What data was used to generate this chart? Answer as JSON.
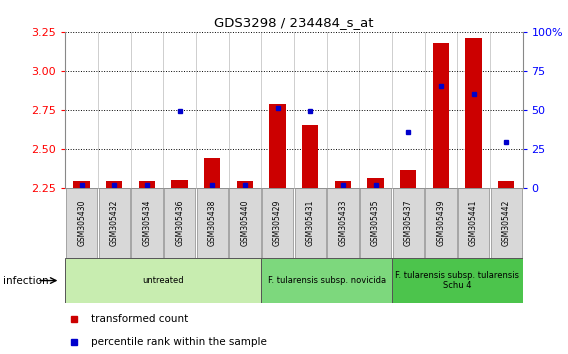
{
  "title": "GDS3298 / 234484_s_at",
  "samples": [
    "GSM305430",
    "GSM305432",
    "GSM305434",
    "GSM305436",
    "GSM305438",
    "GSM305440",
    "GSM305429",
    "GSM305431",
    "GSM305433",
    "GSM305435",
    "GSM305437",
    "GSM305439",
    "GSM305441",
    "GSM305442"
  ],
  "transformed_count": [
    2.29,
    2.29,
    2.29,
    2.3,
    2.44,
    2.29,
    2.79,
    2.65,
    2.29,
    2.31,
    2.36,
    3.18,
    3.21,
    2.29
  ],
  "percentile_rank": [
    2.0,
    2.0,
    2.0,
    49.0,
    2.0,
    2.0,
    51.0,
    49.0,
    2.0,
    2.0,
    36.0,
    65.0,
    60.0,
    29.0
  ],
  "ylim_left": [
    2.25,
    3.25
  ],
  "ylim_right": [
    0,
    100
  ],
  "yticks_left": [
    2.25,
    2.5,
    2.75,
    3.0,
    3.25
  ],
  "yticks_right": [
    0,
    25,
    50,
    75,
    100
  ],
  "groups": [
    {
      "label": "untreated",
      "start": 0,
      "end": 5,
      "color": "#c8edb0"
    },
    {
      "label": "F. tularensis subsp. novicida",
      "start": 6,
      "end": 9,
      "color": "#7dd87d"
    },
    {
      "label": "F. tularensis subsp. tularensis\nSchu 4",
      "start": 10,
      "end": 13,
      "color": "#4cc44c"
    }
  ],
  "bar_color": "#cc0000",
  "dot_color": "#0000cc",
  "bar_width": 0.5,
  "legend_items": [
    {
      "label": "transformed count",
      "color": "#cc0000"
    },
    {
      "label": "percentile rank within the sample",
      "color": "#0000cc"
    }
  ],
  "infection_label": "infection"
}
